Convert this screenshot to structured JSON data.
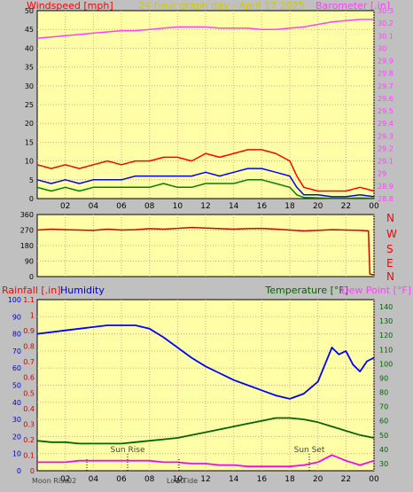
{
  "header": {
    "left_label": "Windspeed [mph]",
    "center_label": "24 hour graph day - April 17 2025",
    "right_label": "Barometer [.in]"
  },
  "direction_labels": [
    "N",
    "W",
    "S",
    "E",
    "N"
  ],
  "bottom_header": {
    "rain_label": "Rainfall [.in]",
    "humidity_label": "Humidity",
    "temp_label": "Temperature [°F]",
    "dew_label": "Dew Point [°F]"
  },
  "events": {
    "sun_rise": "Sun Rise",
    "sun_set": "Sun Set",
    "moon_rise": "Moon Rise",
    "moon_rise_time": "02",
    "low_tide": "Low Tide",
    "low_tide_time": "10"
  },
  "colors": {
    "plot_bg": "#ffffa8",
    "grid": "#e8a080",
    "windspeed": "#ff0000",
    "gust": "#0000ff",
    "avg": "#008000",
    "barometer": "#ff40ff",
    "direction": "#dd0000",
    "humidity": "#0000ff",
    "temperature": "#006400",
    "dewpoint": "#ff00ff",
    "rain": "#ff0000"
  },
  "chart_data": [
    {
      "type": "line",
      "x_ticks": [
        "02",
        "04",
        "06",
        "08",
        "10",
        "12",
        "14",
        "16",
        "18",
        "20",
        "22",
        "00"
      ],
      "xlim": [
        0,
        24
      ],
      "ylim": [
        0,
        50
      ],
      "y_ticks": [
        0,
        5,
        10,
        15,
        20,
        25,
        30,
        35,
        40,
        45,
        50
      ],
      "y2lim": [
        28.8,
        30.3
      ],
      "y2_ticks": [
        "28.8",
        "28.9",
        "29",
        "29.1",
        "29.2",
        "29.3",
        "29.4",
        "29.5",
        "29.6",
        "29.7",
        "29.8",
        "29.9",
        "30",
        "30.1",
        "30.2",
        "30.3"
      ],
      "series": [
        {
          "axis": "right",
          "x": [
            0,
            1,
            2,
            3,
            4,
            5,
            6,
            7,
            8,
            9,
            10,
            11,
            12,
            13,
            14,
            15,
            16,
            17,
            18,
            19,
            20,
            21,
            22,
            23,
            24
          ],
          "values": [
            30.08,
            30.09,
            30.1,
            30.11,
            30.12,
            30.13,
            30.14,
            30.14,
            30.15,
            30.16,
            30.17,
            30.17,
            30.17,
            30.16,
            30.16,
            30.16,
            30.15,
            30.15,
            30.16,
            30.17,
            30.19,
            30.21,
            30.22,
            30.23,
            30.23
          ]
        },
        {
          "x": [
            0,
            1,
            2,
            3,
            4,
            5,
            6,
            7,
            8,
            9,
            10,
            11,
            12,
            13,
            14,
            15,
            16,
            17,
            18,
            18.5,
            19,
            20,
            21,
            22,
            23,
            24
          ],
          "values": [
            9,
            8,
            9,
            8,
            9,
            10,
            9,
            10,
            10,
            11,
            11,
            10,
            12,
            11,
            12,
            13,
            13,
            12,
            10,
            6,
            3,
            2,
            2,
            2,
            3,
            2
          ]
        },
        {
          "x": [
            0,
            1,
            2,
            3,
            4,
            5,
            6,
            7,
            8,
            9,
            10,
            11,
            12,
            13,
            14,
            15,
            16,
            17,
            18,
            18.5,
            19,
            20,
            21,
            22,
            23,
            24
          ],
          "values": [
            5,
            4,
            5,
            4,
            5,
            5,
            5,
            6,
            6,
            6,
            6,
            6,
            7,
            6,
            7,
            8,
            8,
            7,
            6,
            3,
            1,
            1,
            0.5,
            0.5,
            1,
            0.5
          ]
        },
        {
          "x": [
            0,
            1,
            2,
            3,
            4,
            5,
            6,
            7,
            8,
            9,
            10,
            11,
            12,
            13,
            14,
            15,
            16,
            17,
            18,
            18.5,
            19,
            20,
            21,
            22,
            23,
            24
          ],
          "values": [
            3,
            2,
            3,
            2,
            3,
            3,
            3,
            3,
            3,
            4,
            3,
            3,
            4,
            4,
            4,
            5,
            5,
            4,
            3,
            1,
            0.3,
            0.2,
            0.1,
            0.1,
            0.2,
            0.1
          ]
        }
      ]
    },
    {
      "type": "line",
      "ylim": [
        0,
        360
      ],
      "y_ticks": [
        0,
        90,
        180,
        270,
        360
      ],
      "series": [
        {
          "x": [
            0,
            1,
            2,
            3,
            4,
            5,
            6,
            7,
            8,
            9,
            10,
            11,
            12,
            13,
            14,
            15,
            16,
            17,
            18,
            19,
            20,
            21,
            22,
            23,
            23.6,
            23.7,
            24
          ],
          "values": [
            270,
            275,
            272,
            270,
            268,
            275,
            270,
            272,
            278,
            275,
            280,
            285,
            282,
            278,
            275,
            278,
            280,
            275,
            270,
            265,
            268,
            272,
            270,
            268,
            265,
            15,
            10
          ]
        }
      ]
    },
    {
      "type": "line",
      "x_ticks": [
        "02",
        "04",
        "06",
        "08",
        "10",
        "12",
        "14",
        "16",
        "18",
        "20",
        "22",
        "00"
      ],
      "xlim": [
        0,
        24
      ],
      "ylim": [
        0,
        100
      ],
      "y_ticks": [
        0,
        10,
        20,
        30,
        40,
        50,
        60,
        70,
        80,
        90,
        100
      ],
      "y_rain_ticks": [
        "0",
        "0.1",
        "0.2",
        "0.3",
        "0.4",
        "0.5",
        "0.6",
        "0.7",
        "0.8",
        "0.9",
        "1",
        "1.1"
      ],
      "y2lim": [
        25,
        145
      ],
      "y2_ticks": [
        30,
        40,
        50,
        60,
        70,
        80,
        90,
        100,
        110,
        120,
        130,
        140
      ],
      "series": [
        {
          "x": [
            0,
            1,
            2,
            3,
            4,
            5,
            6,
            7,
            8,
            9,
            10,
            11,
            12,
            13,
            14,
            15,
            16,
            17,
            18,
            19,
            20,
            20.5,
            21,
            21.5,
            22,
            22.5,
            23,
            23.5,
            24
          ],
          "values": [
            80,
            81,
            82,
            83,
            84,
            85,
            85,
            85,
            83,
            78,
            72,
            66,
            61,
            57,
            53,
            50,
            47,
            44,
            42,
            45,
            52,
            62,
            72,
            68,
            70,
            62,
            58,
            64,
            66
          ]
        },
        {
          "axis": "right",
          "x": [
            0,
            1,
            2,
            3,
            4,
            5,
            6,
            7,
            8,
            9,
            10,
            11,
            12,
            13,
            14,
            15,
            16,
            17,
            18,
            19,
            20,
            21,
            22,
            23,
            24
          ],
          "values": [
            46,
            45,
            45,
            44,
            44,
            44,
            44,
            45,
            46,
            47,
            48,
            50,
            52,
            54,
            56,
            58,
            60,
            62,
            62,
            61,
            59,
            56,
            53,
            50,
            48
          ]
        },
        {
          "axis": "right",
          "x": [
            0,
            1,
            2,
            3,
            4,
            5,
            6,
            7,
            8,
            9,
            10,
            11,
            12,
            13,
            14,
            15,
            16,
            17,
            18,
            19,
            20,
            21,
            22,
            23,
            24
          ],
          "values": [
            31,
            31,
            31,
            32,
            32,
            32,
            32,
            32,
            32,
            31,
            31,
            30,
            30,
            29,
            29,
            28,
            28,
            28,
            28,
            29,
            31,
            36,
            32,
            29,
            32
          ]
        }
      ]
    }
  ]
}
